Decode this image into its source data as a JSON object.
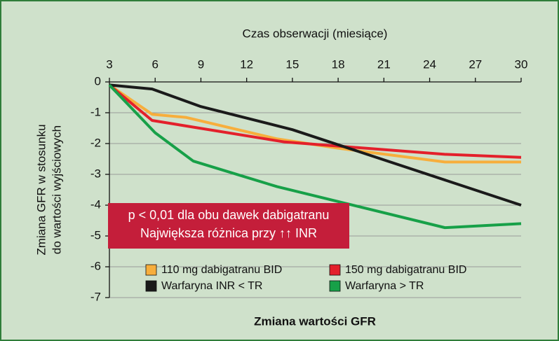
{
  "chart_data": {
    "type": "line",
    "xlabel": "Czas obserwacji (miesiące)",
    "ylabel": [
      "Zmiana GFR w stosunku",
      "do wartości wyjściowych"
    ],
    "footer": "Zmiana wartości GFR",
    "annotation": [
      "p < 0,01 dla obu dawek dabigatranu",
      "Największa różnica przy ↑↑ INR"
    ],
    "xlim": [
      3,
      30
    ],
    "xticks": [
      3,
      6,
      9,
      12,
      15,
      18,
      21,
      24,
      27,
      30
    ],
    "ylim": [
      -7,
      0
    ],
    "yticks": [
      0,
      -1,
      -2,
      -3,
      -4,
      -5,
      -6,
      -7
    ],
    "grid": true,
    "series": [
      {
        "name": "110 mg dabigatranu BID",
        "color": "#f7ae3c",
        "x": [
          3,
          5.8,
          8,
          14,
          18,
          25,
          30
        ],
        "values": [
          -0.1,
          -1.05,
          -1.15,
          -1.85,
          -2.15,
          -2.6,
          -2.6
        ]
      },
      {
        "name": "150 mg dabigatranu BID",
        "color": "#e3202b",
        "x": [
          3,
          5.8,
          14.5,
          25,
          30
        ],
        "values": [
          -0.1,
          -1.25,
          -1.95,
          -2.35,
          -2.45
        ]
      },
      {
        "name": "Warfaryna INR < TR",
        "color": "#1a1a1a",
        "x": [
          3,
          5.8,
          9,
          15,
          30
        ],
        "values": [
          -0.1,
          -0.23,
          -0.8,
          -1.55,
          -4.0
        ]
      },
      {
        "name": "Warfaryna > TR",
        "color": "#17a048",
        "x": [
          3,
          6,
          8.5,
          14,
          25,
          30
        ],
        "values": [
          -0.1,
          -1.65,
          -2.57,
          -3.4,
          -4.73,
          -4.6
        ]
      }
    ]
  }
}
